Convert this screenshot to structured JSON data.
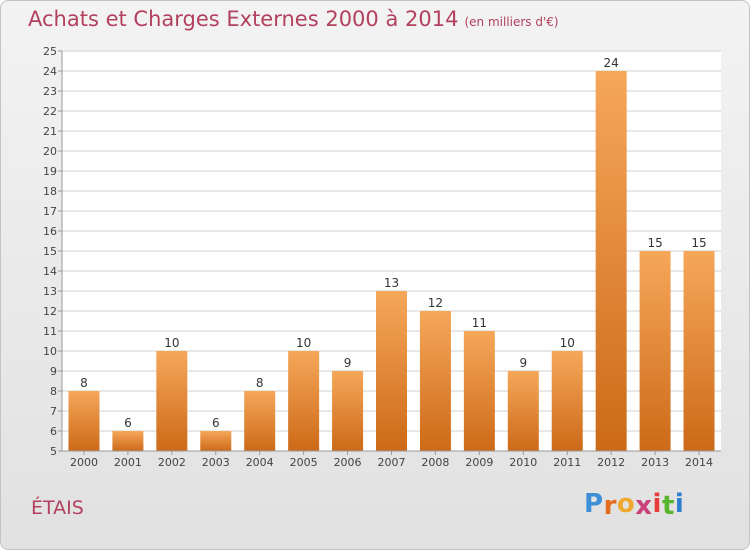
{
  "header": {
    "title": "Achats et Charges Externes 2000 à 2014",
    "subtitle": "(en milliers d'€)"
  },
  "footer": {
    "commune": "ÉTAIS",
    "logo": {
      "letters": [
        "P",
        "r",
        "o",
        "x",
        "i",
        "t",
        "i"
      ],
      "colors": [
        "#3d8fd6",
        "#e46a1e",
        "#f0a830",
        "#c8417a",
        "#e63c3c",
        "#5ab52e",
        "#2f7fcf"
      ]
    }
  },
  "colors": {
    "title": "#b3405f",
    "bar_top": "#f6a75a",
    "bar_bottom": "#cc6a18",
    "grid": "#d0d0d0",
    "axis": "#999999"
  },
  "chart_data": {
    "type": "bar",
    "title": "Achats et Charges Externes 2000 à 2014",
    "xlabel": "",
    "ylabel": "",
    "ylim": [
      5,
      25
    ],
    "yticks": [
      5,
      6,
      7,
      8,
      9,
      10,
      11,
      12,
      13,
      14,
      15,
      16,
      17,
      18,
      19,
      20,
      21,
      22,
      23,
      24,
      25
    ],
    "grid": true,
    "categories": [
      "2000",
      "2001",
      "2002",
      "2003",
      "2004",
      "2005",
      "2006",
      "2007",
      "2008",
      "2009",
      "2010",
      "2011",
      "2012",
      "2013",
      "2014"
    ],
    "values": [
      8,
      6,
      10,
      6,
      8,
      10,
      9,
      13,
      12,
      11,
      9,
      10,
      24,
      15,
      15
    ],
    "data_labels": [
      "8",
      "6",
      "10",
      "6",
      "8",
      "10",
      "9",
      "13",
      "12",
      "11",
      "9",
      "10",
      "24",
      "15",
      "15"
    ]
  }
}
